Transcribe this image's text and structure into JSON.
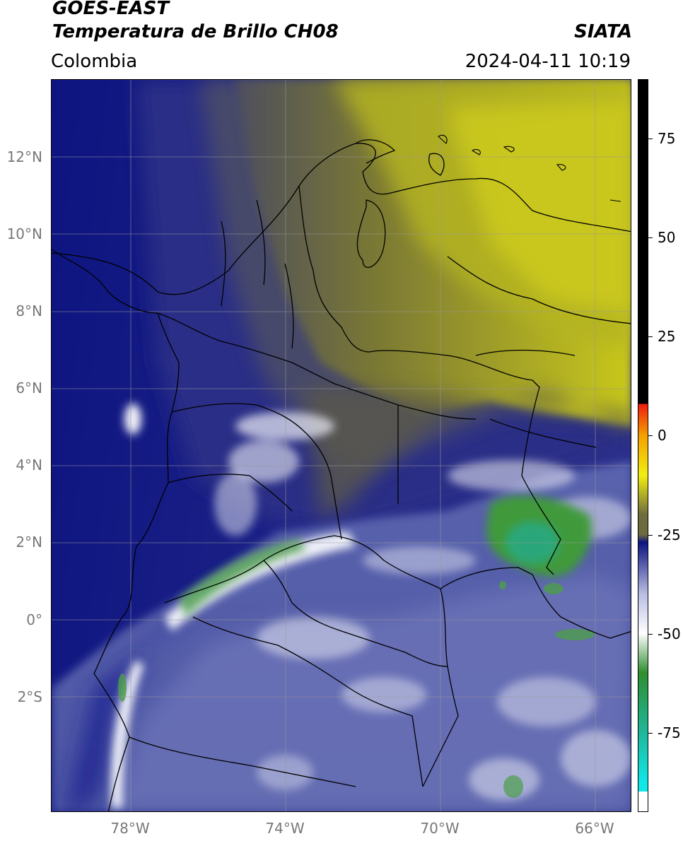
{
  "header": {
    "satellite": "GOES-EAST",
    "product": "Temperatura de Brillo CH08",
    "source": "SIATA",
    "region": "Colombia",
    "datetime": "2024-04-11 10:19"
  },
  "map": {
    "lon_range": [
      -80,
      -65
    ],
    "lat_range": [
      -5,
      14
    ],
    "lon_ticks": [
      "78°W",
      "74°W",
      "70°W",
      "66°W"
    ],
    "lat_ticks": [
      "12°N",
      "10°N",
      "8°N",
      "6°N",
      "4°N",
      "2°N",
      "0°",
      "2°S"
    ],
    "grid": true,
    "colors": {
      "dry_yellow": "#c9c81c",
      "olive": "#76742e",
      "gray": "#585650",
      "dark_blue": "#0d1480",
      "blue": "#3b4499",
      "light_blue": "#8a92c8",
      "white": "#f2f2f6",
      "green": "#3f9a3b",
      "teal": "#2ca77a",
      "borders": "#000000"
    }
  },
  "colorbar": {
    "ticks": [
      "75",
      "50",
      "25",
      "0",
      "-25",
      "-50",
      "-75"
    ],
    "tick_values": [
      75,
      50,
      25,
      0,
      -25,
      -50,
      -75
    ],
    "range": [
      -95,
      90
    ],
    "colors": {
      "black": "#000000",
      "red": "#ee1c10",
      "orange": "#f4a000",
      "yellow": "#f2ee10",
      "olive": "#6d6c3e",
      "navy": "#0d1480",
      "lavender": "#b9bde2",
      "white": "#ffffff",
      "green": "#2f8e2f",
      "teal": "#1fb79a",
      "cyan": "#10e8e8"
    }
  }
}
